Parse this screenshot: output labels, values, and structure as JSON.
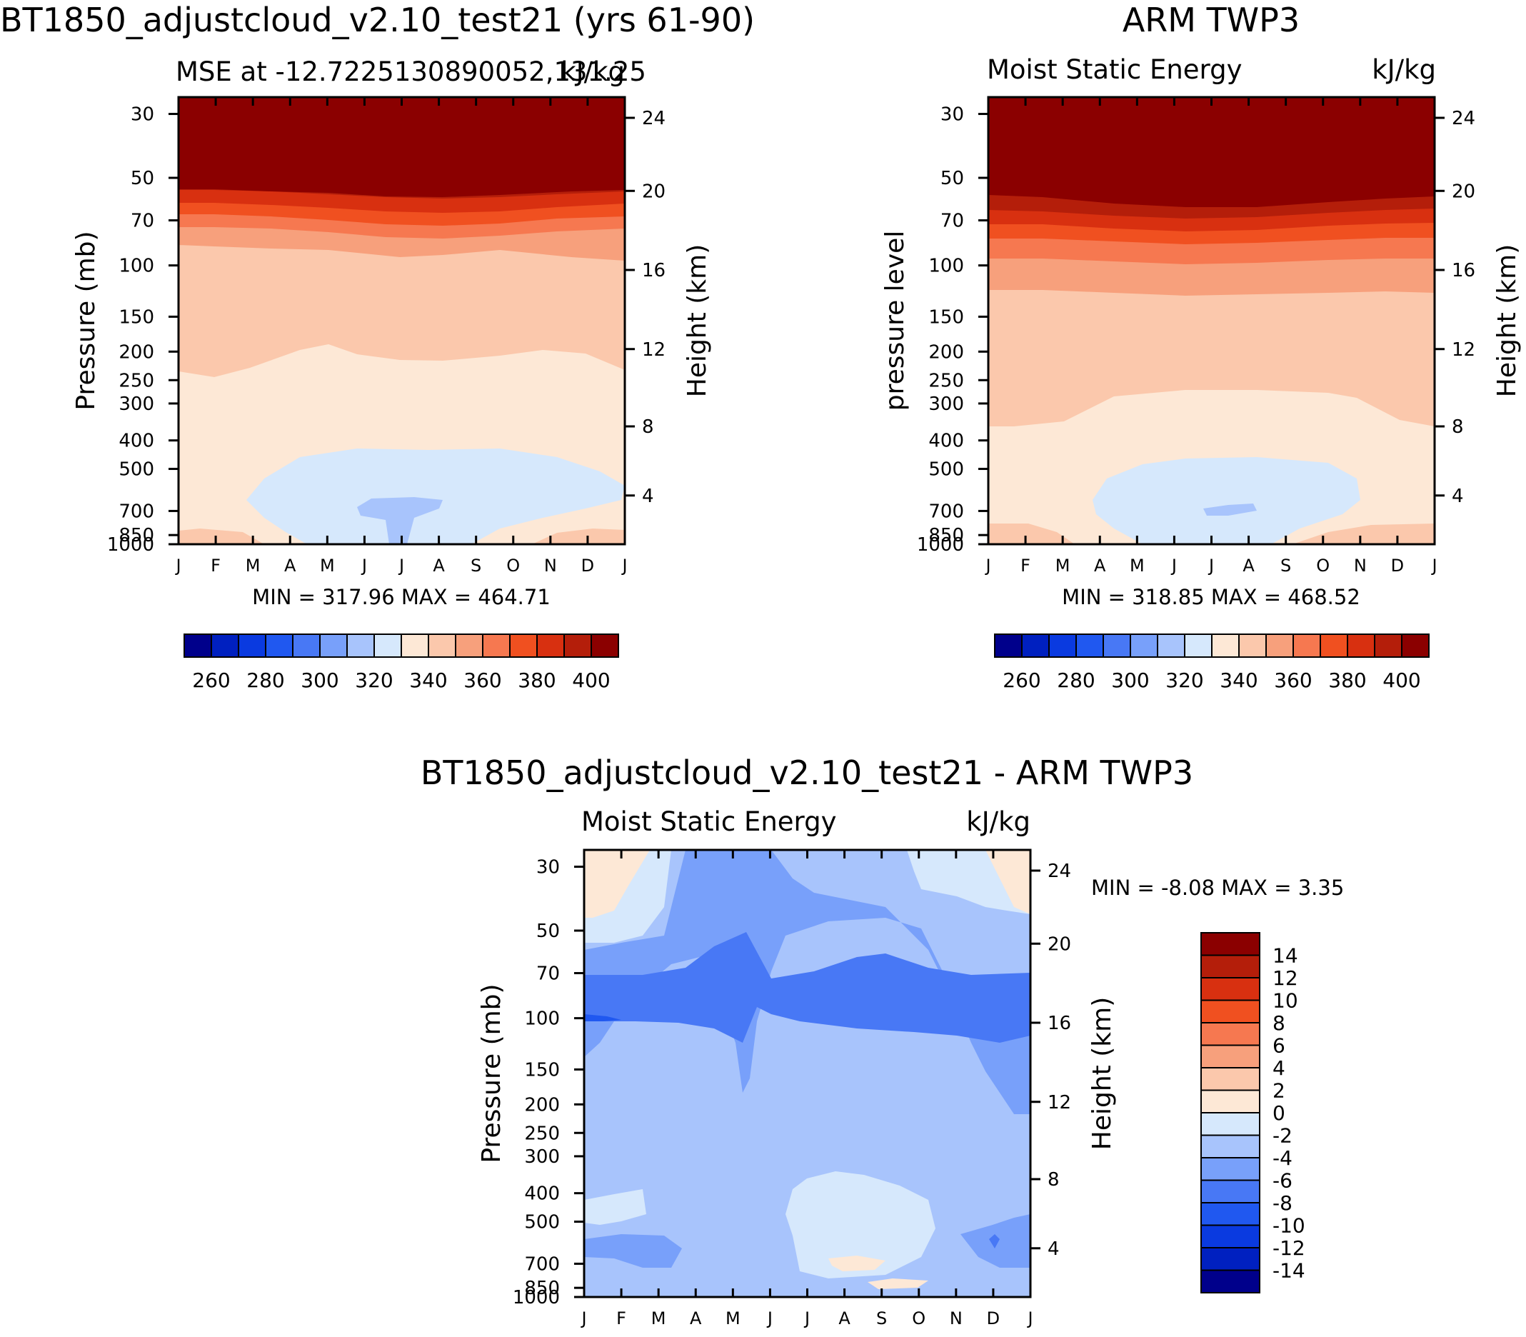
{
  "palettes": {
    "mse": [
      "#00008b",
      "#0020c0",
      "#0a3ae0",
      "#2058f0",
      "#4878f5",
      "#78a0fa",
      "#a8c4fc",
      "#d6e8fc",
      "#fde8d6",
      "#fbc8ac",
      "#f7a07c",
      "#f67850",
      "#f05020",
      "#d83010",
      "#b41e0a",
      "#8b0000"
    ],
    "diff": [
      "#00008b",
      "#0020c0",
      "#0a3ae0",
      "#2058f0",
      "#4878f5",
      "#78a0fa",
      "#a8c4fc",
      "#d6e8fc",
      "#fde8d6",
      "#fbc8ac",
      "#f7a07c",
      "#f67850",
      "#f05020",
      "#d83010",
      "#b41e0a",
      "#8b0000"
    ]
  },
  "panels": {
    "model": {
      "title": "BT1850_adjustcloud_v2.10_test21 (yrs 61-90)",
      "subtitle_left": "MSE at -12.7225130890052,131.25",
      "subtitle_right": "kJ/kg",
      "ylabel": "Pressure (mb)",
      "y2label": "Height (km)",
      "stats": "MIN = 317.96 MAX = 464.71"
    },
    "obs": {
      "title": "ARM TWP3",
      "subtitle_left": "Moist Static Energy",
      "subtitle_right": "kJ/kg",
      "ylabel": "pressure level",
      "y2label": "Height (km)",
      "stats": "MIN = 318.85 MAX = 468.52"
    },
    "diff": {
      "title": "BT1850_adjustcloud_v2.10_test21 - ARM TWP3",
      "subtitle_left": "Moist Static Energy",
      "subtitle_right": "kJ/kg",
      "ylabel": "Pressure (mb)",
      "y2label": "Height (km)",
      "stats": "MIN = -8.08 MAX = 3.35"
    }
  },
  "chart_data": [
    {
      "type": "heatmap",
      "title": "BT1850_adjustcloud_v2.10_test21 (yrs 61-90)",
      "subtitle": "MSE at -12.7225130890052,131.25",
      "units": "kJ/kg",
      "xlabel": "",
      "ylabel": "Pressure (mb)",
      "y2label": "Height (km)",
      "x_ticks": [
        "J",
        "F",
        "M",
        "A",
        "M",
        "J",
        "J",
        "A",
        "S",
        "O",
        "N",
        "D",
        "J"
      ],
      "y_ticks": [
        "30",
        "50",
        "70",
        "100",
        "150",
        "200",
        "250",
        "300",
        "400",
        "500",
        "700",
        "850",
        "1000"
      ],
      "y2_ticks": [
        "24",
        "20",
        "16",
        "12",
        "8",
        "4"
      ],
      "ylim": [
        1000,
        25
      ],
      "colorbar_levels": [
        "260",
        "280",
        "300",
        "320",
        "340",
        "360",
        "380",
        "400"
      ],
      "min": 317.96,
      "max": 464.71,
      "contour_interval": 10,
      "contours_approx": [
        {
          "level": 320,
          "upper_pressure_mb": 480,
          "lower_pressure_mb": 900,
          "months": "M-N"
        },
        {
          "level": 340,
          "upper_pressure_mb": 230,
          "lower_pressure_mb": 1000
        },
        {
          "level": 350,
          "upper_pressure_mb": 95
        },
        {
          "level": 400,
          "upper_pressure_mb": 55
        }
      ]
    },
    {
      "type": "heatmap",
      "title": "ARM TWP3",
      "subtitle": "Moist Static Energy",
      "units": "kJ/kg",
      "xlabel": "",
      "ylabel": "pressure level",
      "y2label": "Height (km)",
      "x_ticks": [
        "J",
        "F",
        "M",
        "A",
        "M",
        "J",
        "J",
        "A",
        "S",
        "O",
        "N",
        "D",
        "J"
      ],
      "y_ticks": [
        "30",
        "50",
        "70",
        "100",
        "150",
        "200",
        "250",
        "300",
        "400",
        "500",
        "700",
        "850",
        "1000"
      ],
      "y2_ticks": [
        "24",
        "20",
        "16",
        "12",
        "8",
        "4"
      ],
      "ylim": [
        1000,
        25
      ],
      "colorbar_levels": [
        "260",
        "280",
        "300",
        "320",
        "340",
        "360",
        "380",
        "400"
      ],
      "min": 318.85,
      "max": 468.52,
      "contour_interval": 10,
      "contours_approx": [
        {
          "level": 320,
          "upper_pressure_mb": 560,
          "lower_pressure_mb": 930,
          "months": "A-N"
        },
        {
          "level": 340,
          "upper_pressure_mb": 300,
          "lower_pressure_mb": 1000
        },
        {
          "level": 350,
          "upper_pressure_mb": 120
        },
        {
          "level": 400,
          "upper_pressure_mb": 60
        }
      ]
    },
    {
      "type": "heatmap",
      "title": "BT1850_adjustcloud_v2.10_test21 - ARM TWP3",
      "subtitle": "Moist Static Energy",
      "units": "kJ/kg",
      "xlabel": "",
      "ylabel": "Pressure (mb)",
      "y2label": "Height (km)",
      "x_ticks": [
        "J",
        "F",
        "M",
        "A",
        "M",
        "J",
        "J",
        "A",
        "S",
        "O",
        "N",
        "D",
        "J"
      ],
      "y_ticks": [
        "30",
        "50",
        "70",
        "100",
        "150",
        "200",
        "250",
        "300",
        "400",
        "500",
        "700",
        "850",
        "1000"
      ],
      "y2_ticks": [
        "24",
        "20",
        "16",
        "12",
        "8",
        "4"
      ],
      "ylim": [
        1000,
        25
      ],
      "colorbar_levels": [
        "14",
        "12",
        "10",
        "8",
        "6",
        "4",
        "2",
        "0",
        "-2",
        "-4",
        "-6",
        "-8",
        "-10",
        "-12",
        "-14"
      ],
      "min": -8.08,
      "max": 3.35,
      "contour_interval": 2,
      "features_approx": [
        {
          "level": -6,
          "pressure_range_mb": [
            60,
            110
          ],
          "months": "J-J"
        },
        {
          "level": 2,
          "pressure_range_mb": [
            25,
            45
          ],
          "months": "J-F and D-J"
        },
        {
          "level": 2,
          "pressure_range_mb": [
            760,
            880
          ],
          "months": "J-S"
        }
      ]
    }
  ]
}
